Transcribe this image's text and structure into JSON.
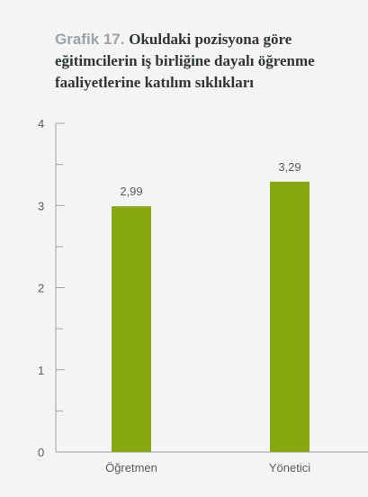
{
  "header": {
    "label": "Grafik 17.",
    "title": "Okuldaki pozisyona göre eğitimcilerin iş birliğine dayalı öğrenme faaliyetlerine katılım sıklıkları"
  },
  "colors": {
    "bar": "#86a70f",
    "axis": "#9aa3a8",
    "tick_text": "#555c60",
    "value_text": "#555c60"
  },
  "chart_data": {
    "type": "bar",
    "categories": [
      "Öğretmen",
      "Yönetici"
    ],
    "values": [
      2.99,
      3.29
    ],
    "value_labels": [
      "2,99",
      "3,29"
    ],
    "ylim": [
      0,
      4
    ],
    "yticks": [
      "0",
      "1",
      "2",
      "3",
      "4"
    ],
    "minor_ticks": true,
    "grid": false,
    "title": "Okuldaki pozisyona göre eğitimcilerin iş birliğine dayalı öğrenme faaliyetlerine katılım sıklıkları",
    "xlabel": "",
    "ylabel": ""
  }
}
